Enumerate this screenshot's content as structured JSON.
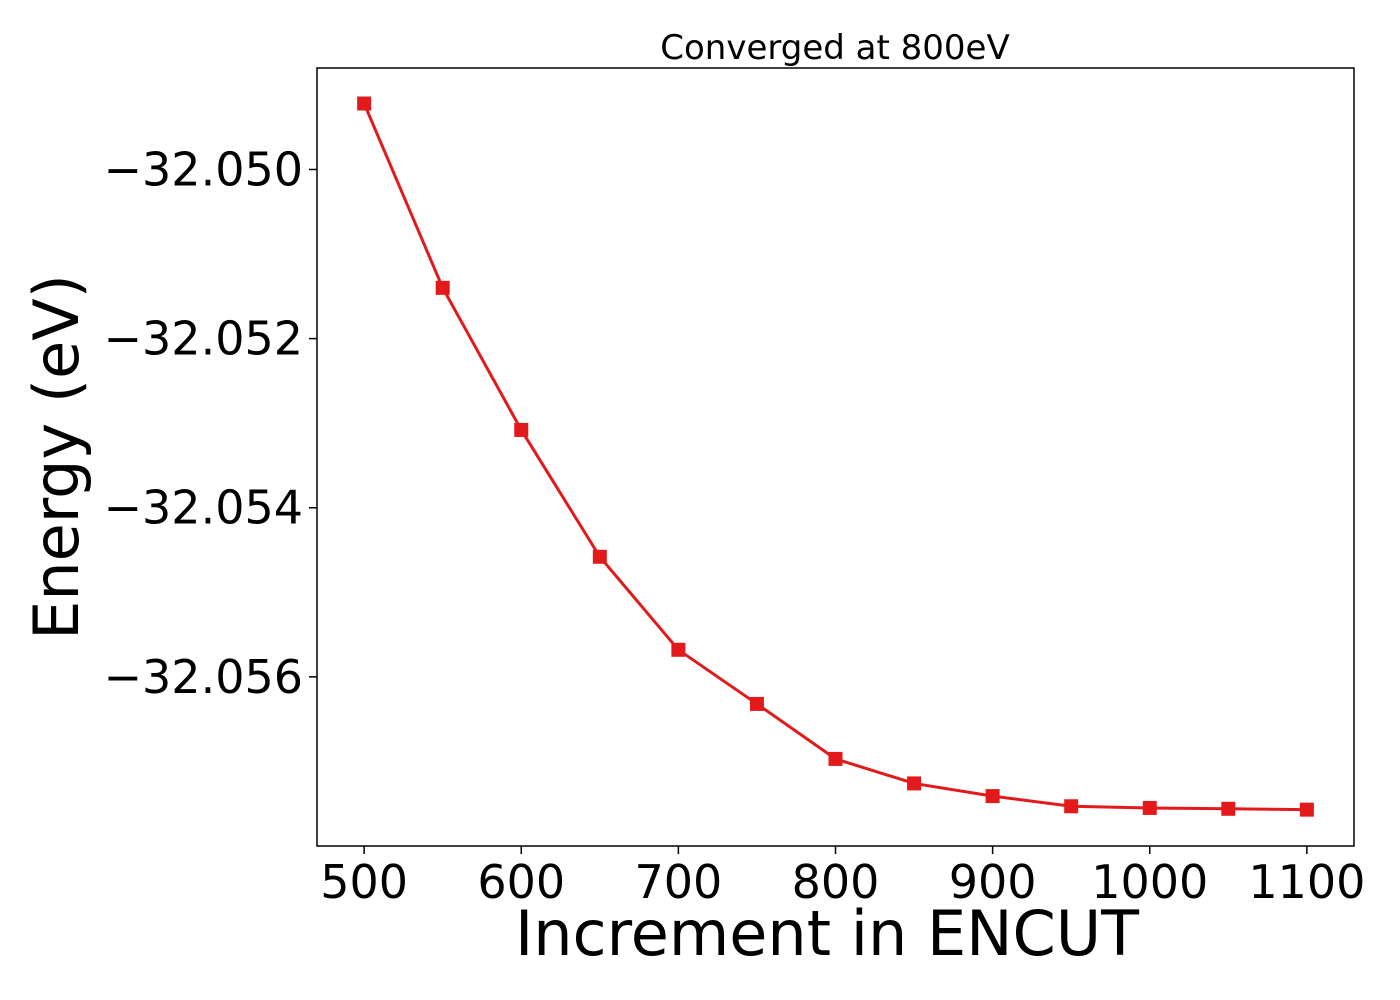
{
  "chart_data": {
    "type": "line",
    "title": "Converged at 800eV",
    "xlabel": "Increment in ENCUT",
    "ylabel": "Energy (eV)",
    "x": [
      500,
      550,
      600,
      650,
      700,
      750,
      800,
      850,
      900,
      950,
      1000,
      1050,
      1100
    ],
    "series": [
      {
        "values": [
          -32.04922,
          -32.0514,
          -32.05308,
          -32.05458,
          -32.05568,
          -32.05632,
          -32.05697,
          -32.05726,
          -32.05741,
          -32.05753,
          -32.05755,
          -32.05756,
          -32.05757
        ],
        "color": "#e31a1c",
        "marker": "square"
      }
    ],
    "xlim": [
      470,
      1130
    ],
    "ylim": [
      -32.058,
      -32.0488
    ],
    "xticks": [
      500,
      600,
      700,
      800,
      900,
      1000,
      1100
    ],
    "xtick_labels": [
      "500",
      "600",
      "700",
      "800",
      "900",
      "1000",
      "1100"
    ],
    "yticks": [
      -32.05,
      -32.052,
      -32.054,
      -32.056
    ],
    "ytick_labels": [
      "−32.050",
      "−32.052",
      "−32.054",
      "−32.056"
    ],
    "grid": false,
    "legend": "none"
  }
}
